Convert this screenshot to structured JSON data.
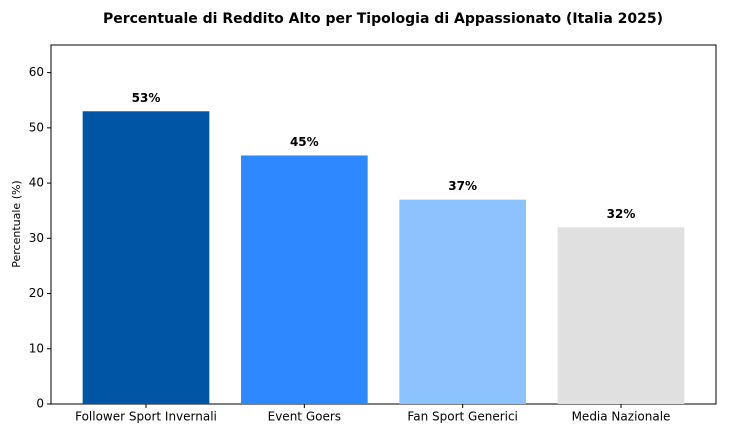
{
  "chart_data": {
    "type": "bar",
    "title": "Percentuale di Reddito Alto per Tipologia di Appassionato (Italia 2025)",
    "y_label": "Percentuale (%)",
    "categories": [
      "Follower Sport Invernali",
      "Event Goers",
      "Fan Sport Generici",
      "Media Nazionale"
    ],
    "values": [
      53,
      45,
      37,
      32
    ],
    "value_labels": [
      "53%",
      "45%",
      "37%",
      "32%"
    ],
    "colors": [
      "#0055a5",
      "#2e88ff",
      "#8cc3ff",
      "#e0e0e0"
    ],
    "ylim": [
      0,
      65
    ],
    "yticks": [
      0,
      10,
      20,
      30,
      40,
      50,
      60
    ],
    "grid": false
  }
}
